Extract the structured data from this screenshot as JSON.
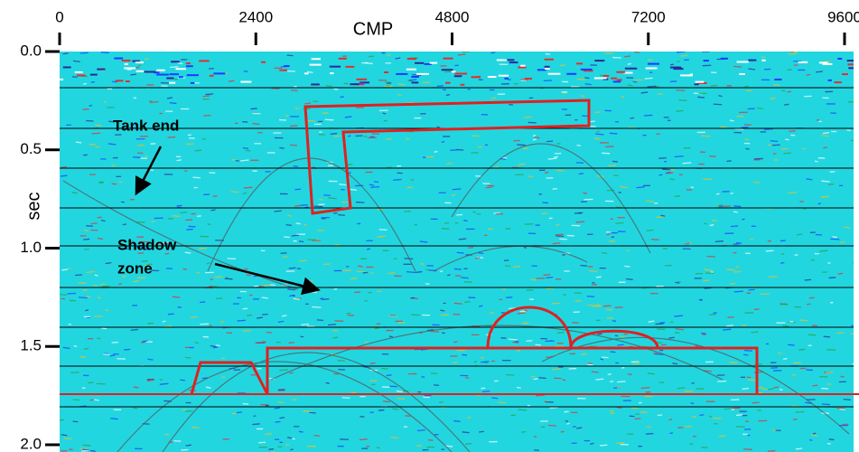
{
  "chart_data": {
    "type": "seismic-section",
    "x_label": "CMP",
    "y_label": "sec",
    "xlim": [
      0,
      9600
    ],
    "xticks": [
      0,
      2400,
      4800,
      7200,
      9600
    ],
    "ylim": [
      0,
      2
    ],
    "yticks": [
      {
        "value": 0,
        "label": "0.0"
      },
      {
        "value": 0.5,
        "label": "0.5"
      },
      {
        "value": 1,
        "label": "1.0"
      },
      {
        "value": 1.5,
        "label": "1.5"
      },
      {
        "value": 2,
        "label": "2.0"
      }
    ],
    "annotations": {
      "tank_end": "Tank end",
      "shadow_zone": [
        "Shadow",
        "zone"
      ]
    }
  }
}
